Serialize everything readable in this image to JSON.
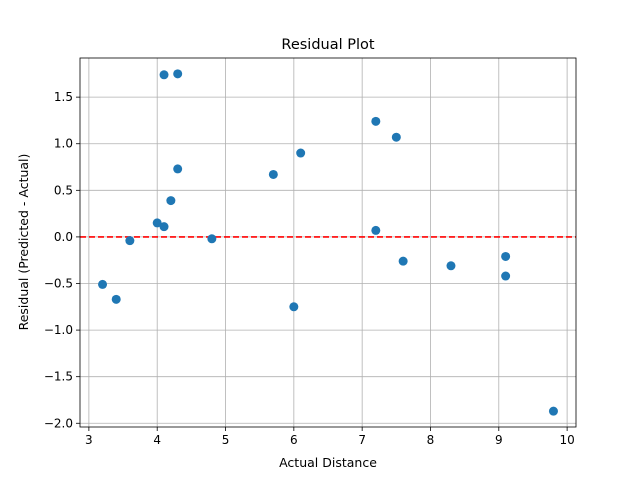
{
  "chart_data": {
    "type": "scatter",
    "title": "Residual Plot",
    "xlabel": "Actual Distance",
    "ylabel": "Residual (Predicted - Actual)",
    "xlim": [
      2.87,
      10.13
    ],
    "ylim": [
      -2.04,
      1.92
    ],
    "xticks": [
      3,
      4,
      5,
      6,
      7,
      8,
      9,
      10
    ],
    "xtick_labels": [
      "3",
      "4",
      "5",
      "6",
      "7",
      "8",
      "9",
      "10"
    ],
    "yticks": [
      -2.0,
      -1.5,
      -1.0,
      -0.5,
      0.0,
      0.5,
      1.0,
      1.5
    ],
    "ytick_labels": [
      "−2.0",
      "−1.5",
      "−1.0",
      "−0.5",
      "0.0",
      "0.5",
      "1.0",
      "1.5"
    ],
    "grid": true,
    "reference_line": {
      "y": 0,
      "style": "dashed",
      "color": "#ff0000"
    },
    "marker_color": "#1f77b4",
    "points": [
      {
        "x": 3.2,
        "y": -0.51
      },
      {
        "x": 3.4,
        "y": -0.67
      },
      {
        "x": 3.6,
        "y": -0.04
      },
      {
        "x": 4.0,
        "y": 0.15
      },
      {
        "x": 4.1,
        "y": 0.11
      },
      {
        "x": 4.1,
        "y": 1.74
      },
      {
        "x": 4.2,
        "y": 0.39
      },
      {
        "x": 4.3,
        "y": 1.75
      },
      {
        "x": 4.3,
        "y": 0.73
      },
      {
        "x": 4.8,
        "y": -0.02
      },
      {
        "x": 5.7,
        "y": 0.67
      },
      {
        "x": 6.0,
        "y": -0.75
      },
      {
        "x": 6.1,
        "y": 0.9
      },
      {
        "x": 7.2,
        "y": 1.24
      },
      {
        "x": 7.2,
        "y": 0.07
      },
      {
        "x": 7.5,
        "y": 1.07
      },
      {
        "x": 7.6,
        "y": -0.26
      },
      {
        "x": 8.3,
        "y": -0.31
      },
      {
        "x": 9.1,
        "y": -0.21
      },
      {
        "x": 9.1,
        "y": -0.42
      },
      {
        "x": 9.8,
        "y": -1.87
      }
    ]
  }
}
